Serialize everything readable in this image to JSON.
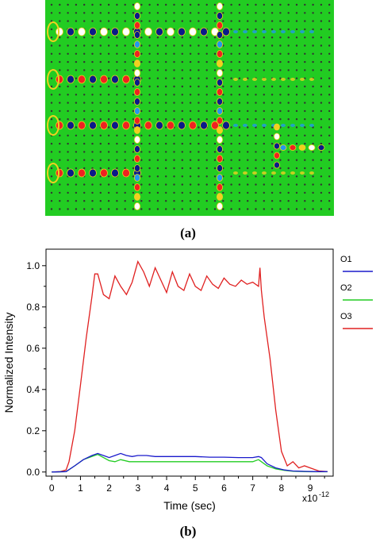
{
  "panel_labels": {
    "a": "(a)",
    "b": "(b)"
  },
  "field_colors": {
    "background": "#22cc22",
    "positive": "#ee2222",
    "negative": "#0a1a8a",
    "max": "#ffffff",
    "mid_pos": "#f0d020",
    "mid_neg": "#2299ee",
    "rod": "#333333"
  },
  "chart_data": {
    "type": "line",
    "xlabel": "Time (sec)",
    "x_scale_label": "x10",
    "x_scale_exponent": "-12",
    "ylabel": "Normalized Intensity",
    "xlim": [
      -0.2,
      9.8
    ],
    "ylim": [
      -0.02,
      1.08
    ],
    "xticks": [
      "0",
      "1",
      "2",
      "3",
      "4",
      "5",
      "6",
      "7",
      "8",
      "9"
    ],
    "yticks": [
      "0.0",
      "0.2",
      "0.4",
      "0.6",
      "0.8",
      "1.0"
    ],
    "legend_position": "right",
    "series": [
      {
        "name": "O1",
        "color": "#1a1acc",
        "x": [
          0,
          0.5,
          0.8,
          1.1,
          1.4,
          1.6,
          1.8,
          2.0,
          2.2,
          2.4,
          2.6,
          2.8,
          3.0,
          3.3,
          3.6,
          4.0,
          4.5,
          5.0,
          5.5,
          6.0,
          6.5,
          7.0,
          7.2,
          7.3,
          7.5,
          7.8,
          8.1,
          8.4,
          8.8,
          9.2,
          9.6
        ],
        "y": [
          0,
          0.002,
          0.03,
          0.06,
          0.08,
          0.09,
          0.08,
          0.07,
          0.08,
          0.09,
          0.08,
          0.075,
          0.08,
          0.08,
          0.075,
          0.075,
          0.075,
          0.075,
          0.072,
          0.072,
          0.07,
          0.07,
          0.075,
          0.07,
          0.04,
          0.02,
          0.01,
          0.005,
          0.003,
          0.002,
          0.002
        ]
      },
      {
        "name": "O2",
        "color": "#22cc22",
        "x": [
          0,
          0.5,
          0.8,
          1.1,
          1.4,
          1.6,
          1.8,
          2.0,
          2.2,
          2.4,
          2.7,
          3.0,
          3.5,
          4.0,
          4.5,
          5.0,
          5.5,
          6.0,
          6.5,
          7.0,
          7.2,
          7.3,
          7.5,
          7.8,
          8.1,
          8.4,
          8.8,
          9.2,
          9.6
        ],
        "y": [
          0,
          0.002,
          0.03,
          0.06,
          0.075,
          0.085,
          0.07,
          0.055,
          0.05,
          0.06,
          0.05,
          0.05,
          0.05,
          0.05,
          0.05,
          0.05,
          0.05,
          0.05,
          0.05,
          0.05,
          0.06,
          0.05,
          0.03,
          0.015,
          0.008,
          0.004,
          0.002,
          0.001,
          0.001
        ]
      },
      {
        "name": "O3",
        "color": "#e02020",
        "x": [
          0,
          0.3,
          0.5,
          0.6,
          0.8,
          1.0,
          1.2,
          1.4,
          1.5,
          1.6,
          1.8,
          2.0,
          2.2,
          2.4,
          2.6,
          2.8,
          3.0,
          3.2,
          3.4,
          3.6,
          3.8,
          4.0,
          4.2,
          4.4,
          4.6,
          4.8,
          5.0,
          5.2,
          5.4,
          5.6,
          5.8,
          6.0,
          6.2,
          6.4,
          6.6,
          6.8,
          7.0,
          7.2,
          7.25,
          7.3,
          7.4,
          7.6,
          7.8,
          8.0,
          8.2,
          8.4,
          8.6,
          8.8,
          9.0,
          9.3,
          9.6
        ],
        "y": [
          0,
          0.002,
          0.01,
          0.05,
          0.2,
          0.42,
          0.65,
          0.85,
          0.96,
          0.96,
          0.86,
          0.84,
          0.95,
          0.9,
          0.86,
          0.92,
          1.02,
          0.97,
          0.9,
          0.99,
          0.93,
          0.87,
          0.97,
          0.9,
          0.88,
          0.96,
          0.9,
          0.88,
          0.95,
          0.91,
          0.89,
          0.94,
          0.91,
          0.9,
          0.93,
          0.91,
          0.92,
          0.9,
          0.99,
          0.88,
          0.75,
          0.55,
          0.3,
          0.1,
          0.03,
          0.05,
          0.02,
          0.03,
          0.02,
          0.005,
          0.002
        ]
      }
    ]
  }
}
